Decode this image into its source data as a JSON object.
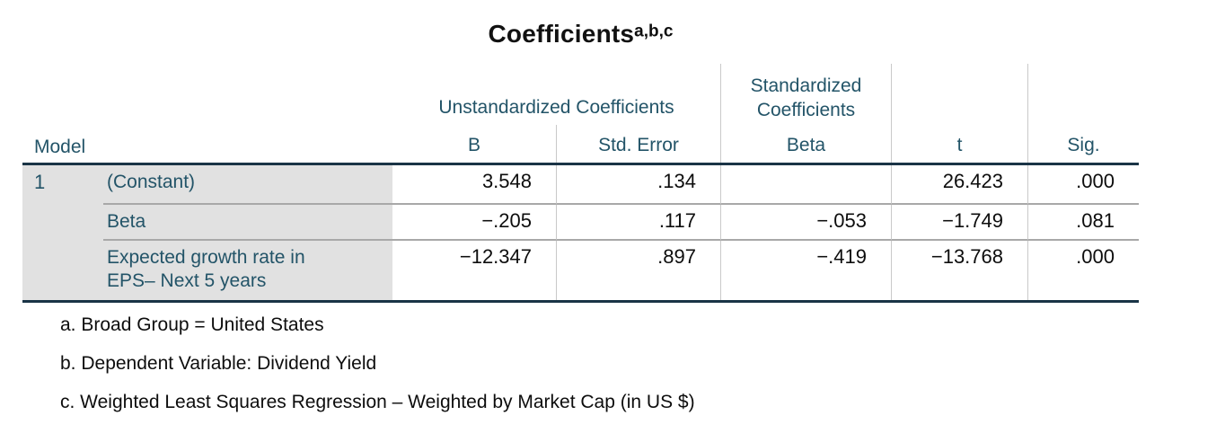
{
  "title": {
    "text": "Coefficients",
    "superscript": "a,b,c"
  },
  "colors": {
    "header_text": "#235468",
    "heavy_border": "#1a3446",
    "row_label_bg": "#e1e1e1",
    "row_separator": "#a8a8a8",
    "column_divider": "#c9c9c9",
    "data_text": "#0d0d0d"
  },
  "table": {
    "group_headers": {
      "unstandardized": "Unstandardized Coefficients",
      "standardized": "Standardized Coefficients"
    },
    "column_headers": {
      "model": "Model",
      "b": "B",
      "std_error": "Std. Error",
      "beta": "Beta",
      "t": "t",
      "sig": "Sig."
    },
    "model_number": "1",
    "rows": [
      {
        "label_lines": [
          "(Constant)"
        ],
        "b": "3.548",
        "std_error": ".134",
        "beta": "",
        "t": "26.423",
        "sig": ".000"
      },
      {
        "label_lines": [
          "Beta"
        ],
        "b": "−.205",
        "std_error": ".117",
        "beta": "−.053",
        "t": "−1.749",
        "sig": ".081"
      },
      {
        "label_lines": [
          "Expected growth rate in",
          "EPS– Next 5 years"
        ],
        "b": "−12.347",
        "std_error": ".897",
        "beta": "−.419",
        "t": "−13.768",
        "sig": ".000"
      }
    ]
  },
  "footnotes": [
    "a. Broad Group = United States",
    "b. Dependent Variable: Dividend Yield",
    "c. Weighted Least Squares Regression – Weighted by Market Cap (in US $)"
  ],
  "chart_data": {
    "type": "table",
    "title": "Coefficients",
    "title_footnote_marks": "a,b,c",
    "column_groups": [
      {
        "label": "Unstandardized Coefficients",
        "columns": [
          "B",
          "Std. Error"
        ]
      },
      {
        "label": "Standardized Coefficients",
        "columns": [
          "Beta"
        ]
      }
    ],
    "columns": [
      "Model",
      "",
      "B",
      "Std. Error",
      "Beta",
      "t",
      "Sig."
    ],
    "rows": [
      [
        "1",
        "(Constant)",
        3.548,
        0.134,
        null,
        26.423,
        0.0
      ],
      [
        "",
        "Beta",
        -0.205,
        0.117,
        -0.053,
        -1.749,
        0.081
      ],
      [
        "",
        "Expected growth rate in EPS– Next 5 years",
        -12.347,
        0.897,
        -0.419,
        -13.768,
        0.0
      ]
    ],
    "footnotes": [
      "a. Broad Group = United States",
      "b. Dependent Variable: Dividend Yield",
      "c. Weighted Least Squares Regression – Weighted by Market Cap (in US $)"
    ]
  }
}
